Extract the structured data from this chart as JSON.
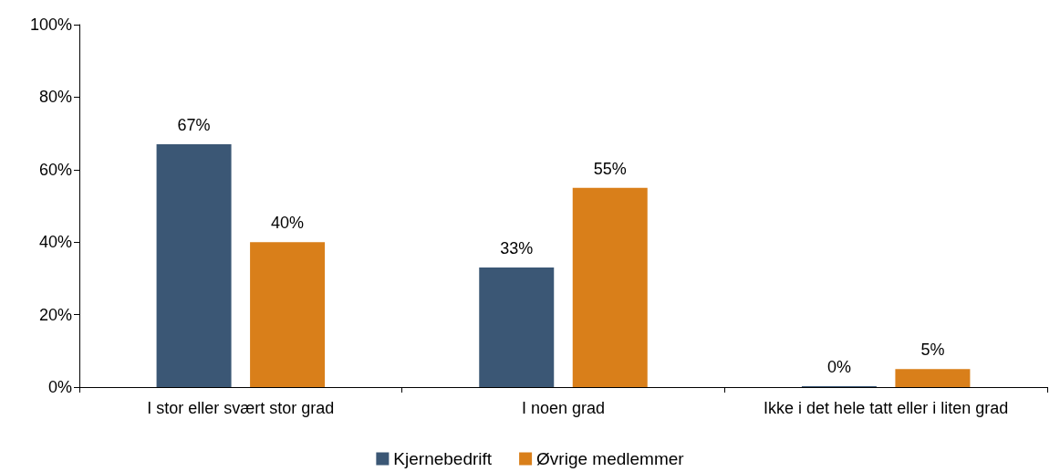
{
  "chart_data": {
    "type": "bar",
    "categories": [
      "I stor eller svært stor grad",
      "I noen grad",
      "Ikke i det hele tatt eller i liten grad"
    ],
    "series": [
      {
        "name": "Kjernebedrift",
        "color": "#3b5775",
        "values": [
          67,
          33,
          0
        ],
        "value_labels": [
          "67%",
          "33%",
          "0%"
        ]
      },
      {
        "name": "Øvrige medlemmer",
        "color": "#d97f1a",
        "values": [
          40,
          55,
          5
        ],
        "value_labels": [
          "40%",
          "55%",
          "5%"
        ]
      }
    ],
    "ylim": [
      0,
      100
    ],
    "yticks": [
      {
        "value": 0,
        "label": "0%"
      },
      {
        "value": 20,
        "label": "20%"
      },
      {
        "value": 40,
        "label": "40%"
      },
      {
        "value": 60,
        "label": "60%"
      },
      {
        "value": 80,
        "label": "80%"
      },
      {
        "value": 100,
        "label": "100%"
      }
    ],
    "grid": false,
    "legend": "bottom"
  }
}
